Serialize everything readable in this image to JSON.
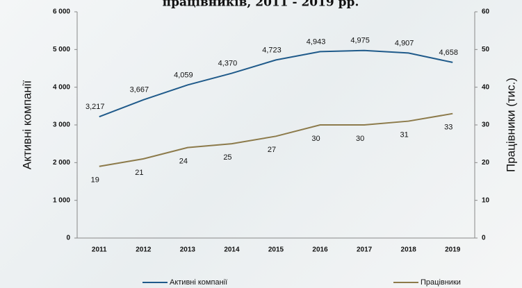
{
  "chart_data": {
    "type": "line",
    "title": "працівників, 2011 - 2019 рр.",
    "y_label": "Активні компанії",
    "y2_label": "Працівники (тис.)",
    "categories": [
      "2011",
      "2012",
      "2013",
      "2014",
      "2015",
      "2016",
      "2017",
      "2018",
      "2019"
    ],
    "series": [
      {
        "name": "Активні компанії",
        "color": "#1f5a8a",
        "values": [
          3217,
          3667,
          4059,
          4370,
          4723,
          4943,
          4975,
          4907,
          4658
        ],
        "value_labels": [
          "3,217",
          "3,667",
          "4,059",
          "4,370",
          "4,723",
          "4,943",
          "4,975",
          "4,907",
          "4,658"
        ]
      },
      {
        "name": "Працівники",
        "color": "#8c7a4a",
        "axis": "y2",
        "values": [
          19,
          21,
          24,
          25,
          27,
          30,
          30,
          31,
          33
        ]
      }
    ],
    "ylim": [
      0,
      6000
    ],
    "yticks": [
      0,
      {
        "value": 1000,
        "label": "1 000"
      },
      {
        "value": 2000,
        "label": "2 000"
      },
      {
        "value": 3000,
        "label": "3 000"
      },
      {
        "value": 4000,
        "label": "4 000"
      },
      {
        "value": 5000,
        "label": "5 000"
      },
      {
        "value": 6000,
        "label": "6 000"
      }
    ],
    "y2lim": [
      0,
      60
    ],
    "y2ticks": [
      0,
      10,
      20,
      30,
      40,
      50,
      60
    ],
    "legend": "bottom"
  }
}
